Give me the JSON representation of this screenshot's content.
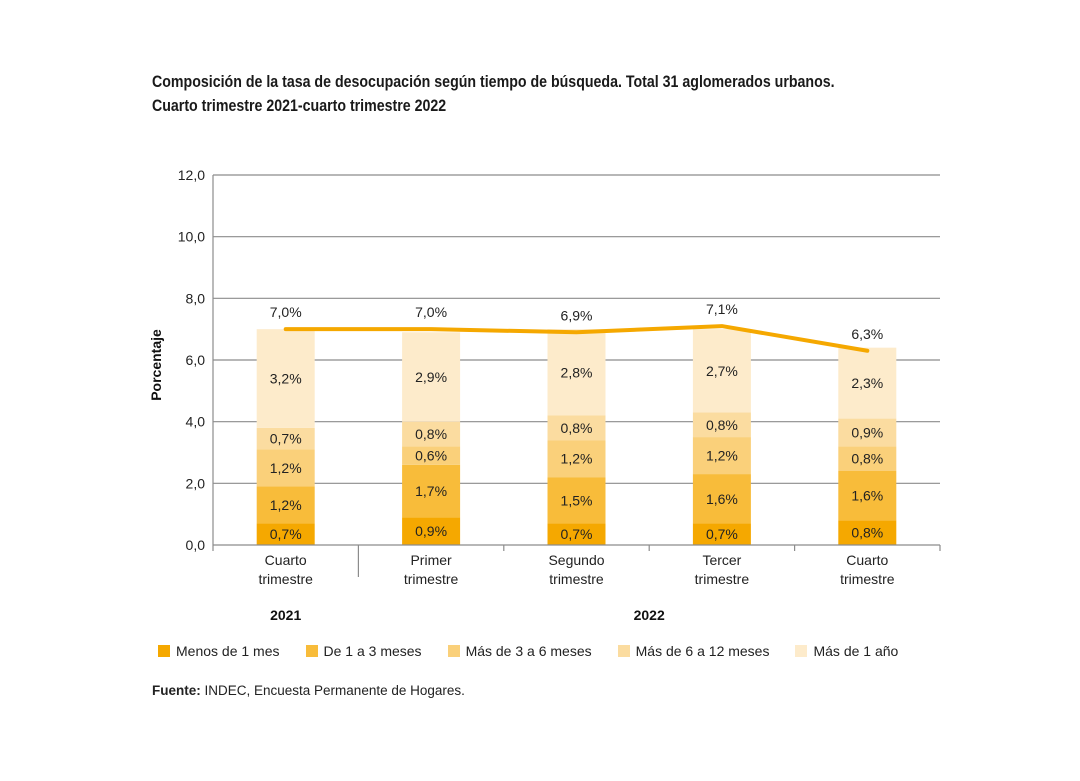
{
  "title_line1": "Composición de la tasa de desocupación según tiempo de búsqueda. Total 31 aglomerados urbanos.",
  "title_line2": "Cuarto trimestre 2021-cuarto trimestre 2022",
  "source_label": "Fuente:",
  "source_text": " INDEC, Encuesta Permanente de Hogares.",
  "chart_data": {
    "type": "bar",
    "stacked": true,
    "title": "Composición de la tasa de desocupación según tiempo de búsqueda. Total 31 aglomerados urbanos. Cuarto trimestre 2021-cuarto trimestre 2022",
    "xlabel": "",
    "ylabel": "Porcentaje",
    "ylim": [
      0,
      12
    ],
    "yticks": [
      "0,0",
      "2,0",
      "4,0",
      "6,0",
      "8,0",
      "10,0",
      "12,0"
    ],
    "ytick_values": [
      0,
      2,
      4,
      6,
      8,
      10,
      12
    ],
    "grid": true,
    "categories": [
      [
        "Cuarto",
        "trimestre"
      ],
      [
        "Primer",
        "trimestre"
      ],
      [
        "Segundo",
        "trimestre"
      ],
      [
        "Tercer",
        "trimestre"
      ],
      [
        "Cuarto",
        "trimestre"
      ]
    ],
    "year_groups": [
      {
        "label": "2021",
        "categories": [
          0
        ]
      },
      {
        "label": "2022",
        "categories": [
          1,
          2,
          3,
          4
        ]
      }
    ],
    "series": [
      {
        "name": "Menos de 1 mes",
        "color": "#F5A800",
        "values": [
          0.7,
          0.9,
          0.7,
          0.7,
          0.8
        ],
        "labels": [
          "0,7%",
          "0,9%",
          "0,7%",
          "0,7%",
          "0,8%"
        ]
      },
      {
        "name": "De 1 a 3 meses",
        "color": "#F8BC3A",
        "values": [
          1.2,
          1.7,
          1.5,
          1.6,
          1.6
        ],
        "labels": [
          "1,2%",
          "1,7%",
          "1,5%",
          "1,6%",
          "1,6%"
        ]
      },
      {
        "name": "Más de 3 a 6 meses",
        "color": "#FAD07A",
        "values": [
          1.2,
          0.6,
          1.2,
          1.2,
          0.8
        ],
        "labels": [
          "1,2%",
          "0,6%",
          "1,2%",
          "1,2%",
          "0,8%"
        ]
      },
      {
        "name": "Más de 6 a 12 meses",
        "color": "#FBDCA0",
        "values": [
          0.7,
          0.8,
          0.8,
          0.8,
          0.9
        ],
        "labels": [
          "0,7%",
          "0,8%",
          "0,8%",
          "0,8%",
          "0,9%"
        ]
      },
      {
        "name": "Más de 1 año",
        "color": "#FDEBCB",
        "values": [
          3.2,
          2.9,
          2.8,
          2.7,
          2.3
        ],
        "labels": [
          "3,2%",
          "2,9%",
          "2,8%",
          "2,7%",
          "2,3%"
        ]
      }
    ],
    "total_line": {
      "name": "Tasa de desocupación",
      "color": "#F5A800",
      "values": [
        7.0,
        7.0,
        6.9,
        7.1,
        6.3
      ],
      "labels": [
        "7,0%",
        "7,0%",
        "6,9%",
        "7,1%",
        "6,3%"
      ]
    },
    "legend_position": "bottom"
  }
}
